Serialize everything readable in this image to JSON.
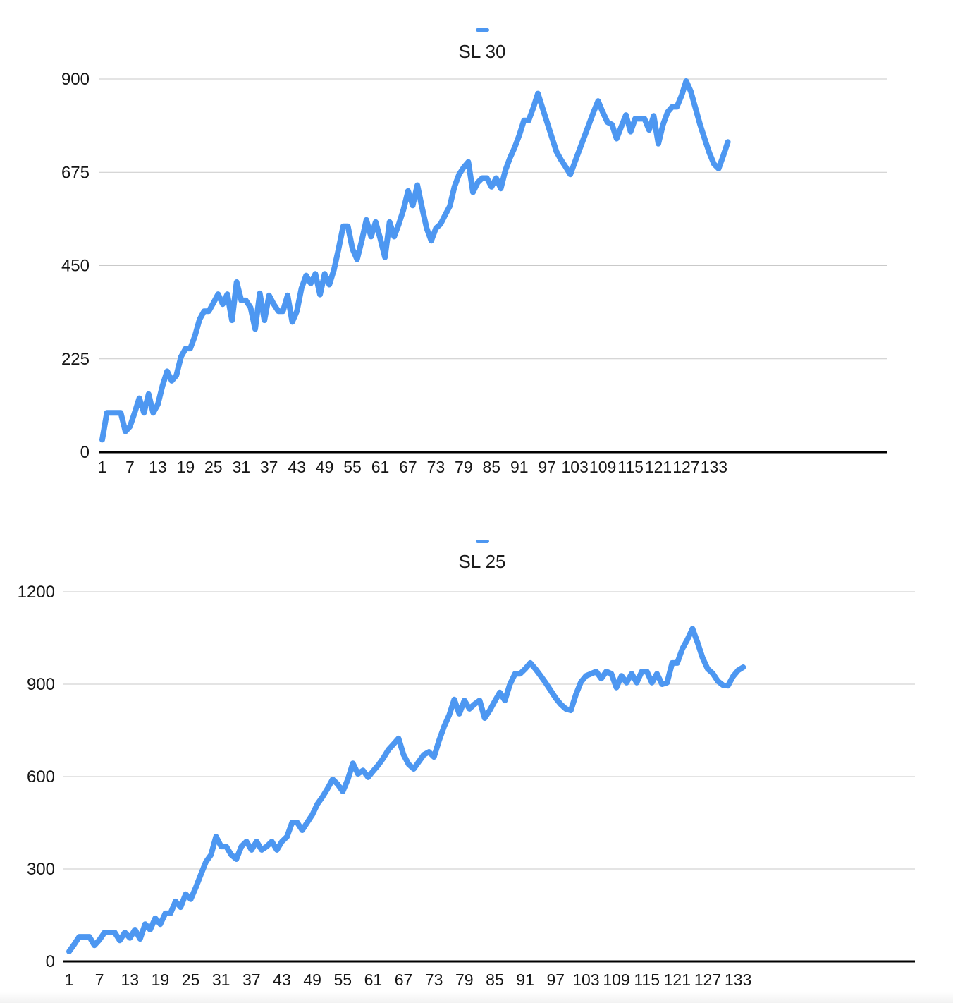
{
  "page": {
    "background": "#ffffff"
  },
  "chart_data": [
    {
      "type": "line",
      "title": "SL 30",
      "legend": {
        "marker": "dash",
        "series_color": "#4d97f1"
      },
      "grid_color": "#c9c9c9",
      "axis_color": "#000000",
      "label_color": "#161616",
      "xlabel": "",
      "ylabel": "",
      "ylim": [
        0,
        900
      ],
      "y_ticks": [
        0,
        225,
        450,
        675,
        900
      ],
      "x_tick_labels": [
        "1",
        "7",
        "13",
        "19",
        "25",
        "31",
        "37",
        "43",
        "49",
        "55",
        "61",
        "67",
        "73",
        "79",
        "85",
        "91",
        "97",
        "103",
        "109",
        "115",
        "121",
        "127",
        "133"
      ],
      "x_label_step": 6,
      "x_start": 1,
      "values": [
        30,
        95,
        95,
        95,
        95,
        50,
        62,
        95,
        130,
        95,
        140,
        95,
        115,
        160,
        195,
        172,
        185,
        230,
        250,
        250,
        280,
        320,
        340,
        340,
        360,
        381,
        357,
        381,
        318,
        410,
        366,
        366,
        349,
        297,
        383,
        318,
        378,
        357,
        340,
        340,
        378,
        314,
        340,
        395,
        426,
        407,
        430,
        380,
        430,
        404,
        440,
        490,
        545,
        545,
        490,
        465,
        510,
        560,
        520,
        555,
        515,
        470,
        555,
        520,
        550,
        585,
        630,
        595,
        644,
        590,
        540,
        510,
        540,
        550,
        572,
        593,
        640,
        670,
        687,
        700,
        627,
        650,
        661,
        661,
        640,
        661,
        636,
        680,
        710,
        735,
        765,
        800,
        800,
        830,
        865,
        830,
        795,
        760,
        725,
        705,
        688,
        670,
        700,
        730,
        760,
        790,
        820,
        847,
        820,
        796,
        790,
        756,
        785,
        813,
        773,
        804,
        804,
        804,
        777,
        811,
        744,
        790,
        820,
        833,
        833,
        860,
        895,
        870,
        830,
        790,
        755,
        722,
        695,
        684,
        715,
        748
      ]
    },
    {
      "type": "line",
      "title": "SL 25",
      "legend": {
        "marker": "dash",
        "series_color": "#4d97f1"
      },
      "grid_color": "#c9c9c9",
      "axis_color": "#000000",
      "label_color": "#161616",
      "xlabel": "",
      "ylabel": "",
      "ylim": [
        0,
        1200
      ],
      "y_ticks": [
        0,
        300,
        600,
        900,
        1200
      ],
      "x_tick_labels": [
        "1",
        "7",
        "13",
        "19",
        "25",
        "31",
        "37",
        "43",
        "49",
        "55",
        "61",
        "67",
        "73",
        "79",
        "85",
        "91",
        "97",
        "103",
        "109",
        "115",
        "121",
        "127",
        "133"
      ],
      "x_label_step": 6,
      "x_start": 1,
      "values": [
        32,
        55,
        80,
        80,
        80,
        52,
        70,
        94,
        94,
        94,
        68,
        94,
        76,
        103,
        73,
        121,
        103,
        140,
        121,
        156,
        156,
        195,
        176,
        218,
        202,
        240,
        282,
        323,
        346,
        405,
        373,
        373,
        346,
        332,
        373,
        389,
        362,
        389,
        362,
        373,
        389,
        362,
        389,
        405,
        451,
        451,
        426,
        451,
        476,
        511,
        534,
        561,
        591,
        575,
        552,
        591,
        643,
        609,
        620,
        598,
        618,
        637,
        660,
        687,
        705,
        724,
        671,
        640,
        625,
        648,
        671,
        680,
        664,
        717,
        763,
        800,
        850,
        804,
        847,
        820,
        835,
        847,
        790,
        815,
        845,
        873,
        847,
        900,
        934,
        934,
        950,
        969,
        950,
        928,
        905,
        880,
        855,
        835,
        820,
        815,
        866,
        907,
        927,
        934,
        941,
        918,
        941,
        934,
        889,
        927,
        905,
        934,
        905,
        941,
        941,
        905,
        934,
        900,
        905,
        969,
        969,
        1015,
        1045,
        1080,
        1035,
        985,
        950,
        935,
        910,
        897,
        895,
        925,
        945,
        955
      ]
    }
  ]
}
